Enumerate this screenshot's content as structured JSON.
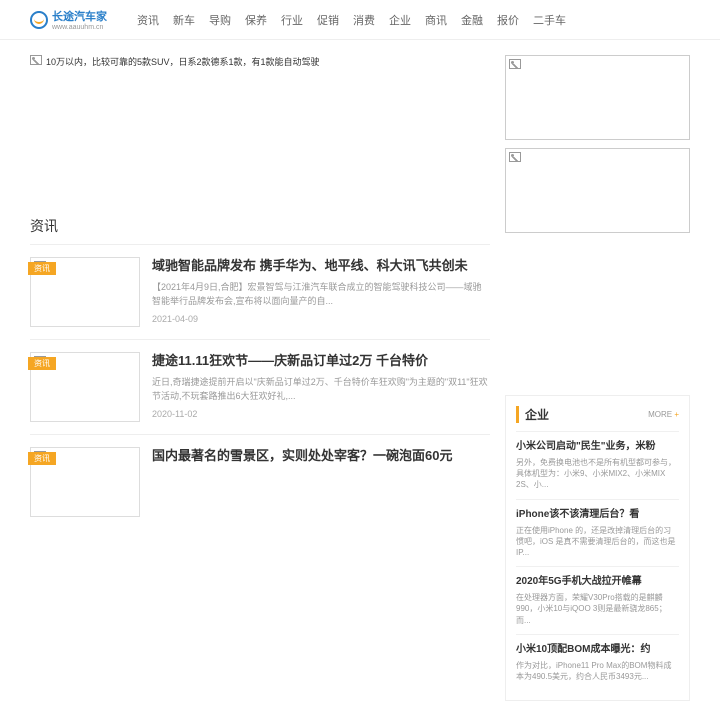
{
  "logo": {
    "text": "长途汽车家",
    "sub": "www.aauuhm.cn"
  },
  "nav": [
    "资讯",
    "新车",
    "导购",
    "保养",
    "行业",
    "促销",
    "消费",
    "企业",
    "商讯",
    "金融",
    "报价",
    "二手车"
  ],
  "hero_alt": "10万以内，比较可靠的5款SUV，日系2款德系1款，有1款能自动驾驶",
  "section_title": "资讯",
  "articles": [
    {
      "tag": "资讯",
      "title": "域驰智能品牌发布 携手华为、地平线、科大讯飞共创未",
      "desc": "【2021年4月9日,合肥】宏景智驾与江淮汽车联合成立的智能驾驶科技公司——域驰智能举行品牌发布会,宣布将以面向量产的自...",
      "date": "2021-04-09"
    },
    {
      "tag": "资讯",
      "title": "捷途11.11狂欢节——庆新品订单过2万 千台特价",
      "desc": "近日,奇瑞捷途提前开启以\"庆新品订单过2万、千台特价车狂欢购\"为主题的\"双11\"狂欢节活动,不玩套路推出6大狂欢好礼,...",
      "date": "2020-11-02"
    },
    {
      "tag": "资讯",
      "title": "国内最著名的雪景区，实则处处宰客？一碗泡面60元",
      "desc": "",
      "date": ""
    }
  ],
  "sidebar": {
    "title": "企业",
    "more": "MORE",
    "items": [
      {
        "title": "小米公司启动\"民生\"业务，米粉",
        "desc": "另外，免费换电池也不是所有机型都可参与，具体机型为：小米9、小米MIX2、小米MIX 2S、小..."
      },
      {
        "title": "iPhone该不该清理后台？看",
        "desc": "正在使用iPhone 的，还是改掉清理后台的习惯吧，iOS 是真不需要清理后台的，而这也是 IP..."
      },
      {
        "title": "2020年5G手机大战拉开帷幕",
        "desc": "在处理器方面，荣耀V30Pro搭载的是麒麟990，小米10与iQOO 3则是最新骁龙865；而..."
      },
      {
        "title": "小米10顶配BOM成本曝光：约",
        "desc": "作为对比，iPhone11 Pro Max的BOM物料成本为490.5美元，约合人民币3493元..."
      }
    ]
  }
}
